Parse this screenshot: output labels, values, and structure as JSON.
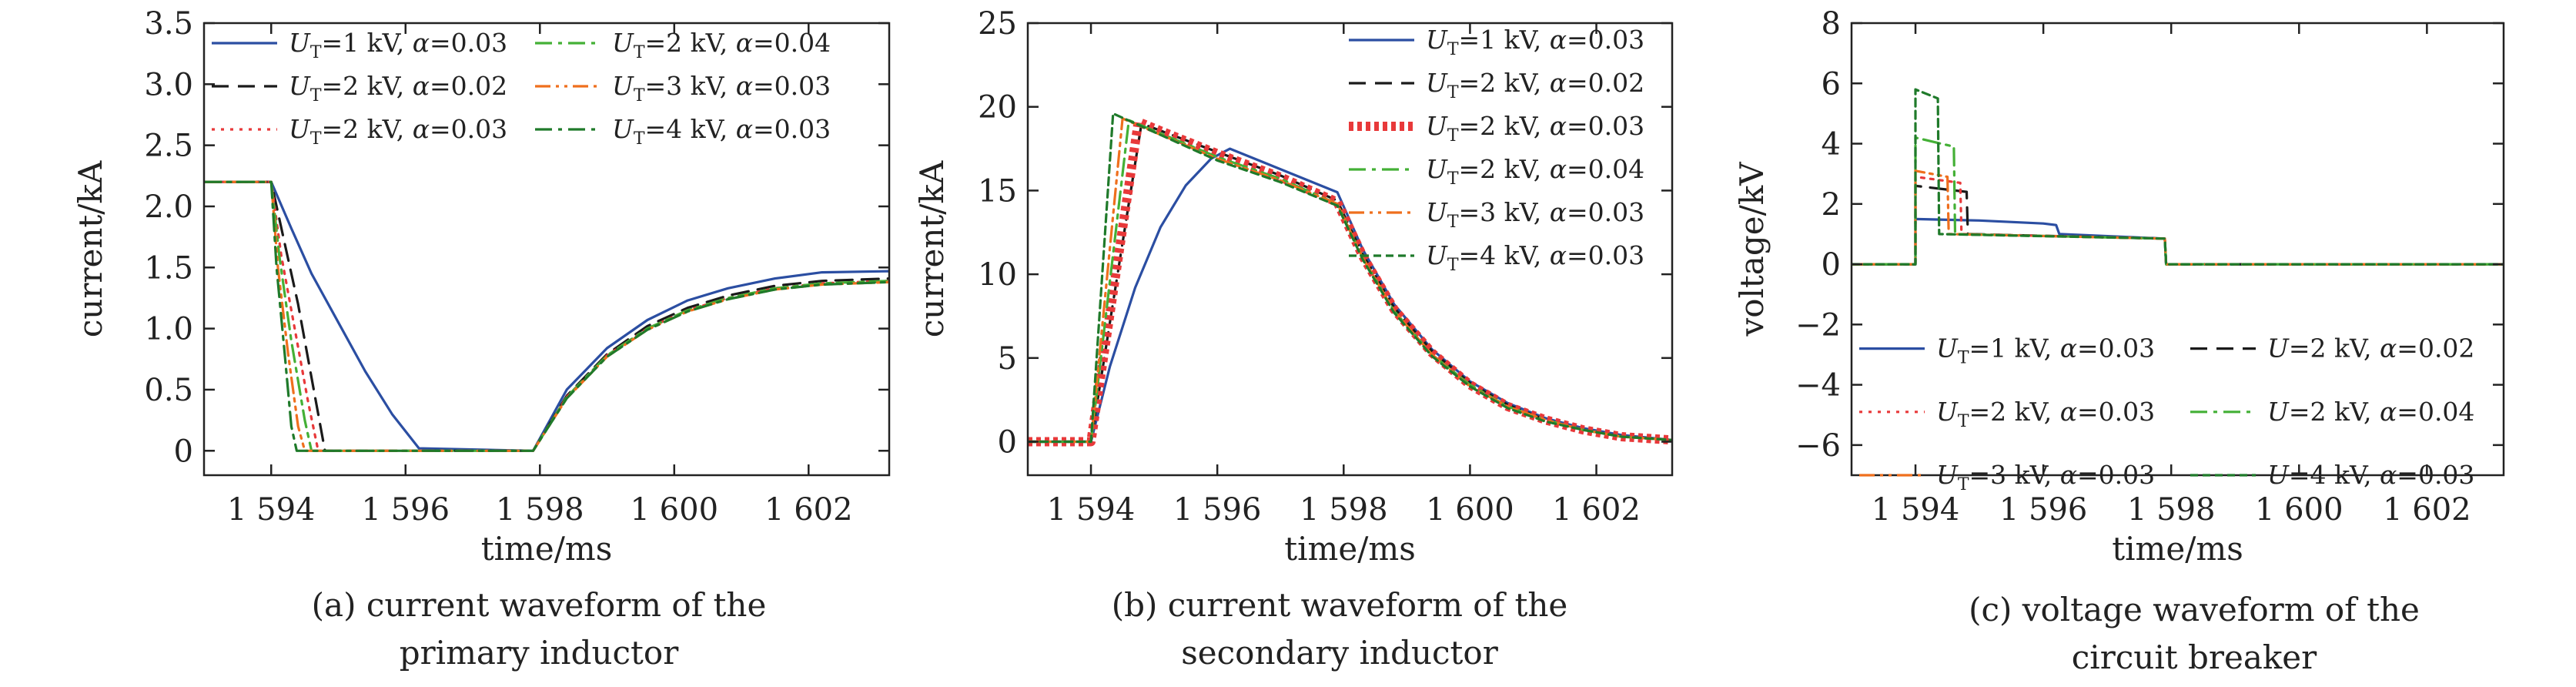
{
  "colors": {
    "blue": "#2b4ea2",
    "black": "#1a1a1a",
    "red": "#e8393a",
    "green_light": "#44b036",
    "orange": "#ef6f1d",
    "green_dark": "#1f7a2a",
    "axis": "#222222"
  },
  "chart_data": [
    {
      "type": "line",
      "title": "",
      "caption": [
        "(a) current waveform of the",
        "primary inductor"
      ],
      "xlabel": "time/ms",
      "ylabel": "current/kA",
      "xlim": [
        1593,
        1603.2
      ],
      "ylim": [
        -0.2,
        3.5
      ],
      "xticks": [
        1594,
        1596,
        1598,
        1600,
        1602
      ],
      "xtick_labels": [
        "1 594",
        "1 596",
        "1 598",
        "1 600",
        "1 602"
      ],
      "yticks": [
        0,
        0.5,
        1.0,
        1.5,
        2.0,
        2.5,
        3.0,
        3.5
      ],
      "ytick_labels": [
        "0",
        "0.5",
        "1.0",
        "1.5",
        "2.0",
        "2.5",
        "3.0",
        "3.5"
      ],
      "legend_position": "top",
      "legend_columns": 2,
      "legend_order": [
        0,
        3,
        1,
        4,
        2,
        5
      ],
      "series": [
        {
          "name": "U_T=1 kV, α=0.03",
          "color": "blue",
          "dash": "solid",
          "x": [
            1593,
            1594,
            1594.3,
            1594.6,
            1595.0,
            1595.4,
            1595.8,
            1596.2,
            1597.9,
            1598.4,
            1599,
            1599.6,
            1600.2,
            1600.8,
            1601.5,
            1602.2,
            1603.2
          ],
          "y": [
            2.2,
            2.2,
            1.82,
            1.45,
            1.05,
            0.65,
            0.3,
            0.02,
            0.0,
            0.5,
            0.84,
            1.07,
            1.23,
            1.33,
            1.41,
            1.46,
            1.47
          ]
        },
        {
          "name": "U_T=2 kV, α=0.02",
          "color": "black",
          "dash": "dash",
          "x": [
            1593,
            1594,
            1594.2,
            1594.4,
            1594.6,
            1594.8,
            1597.9,
            1598.4,
            1599,
            1599.6,
            1600.2,
            1600.8,
            1601.5,
            1602.2,
            1603.2
          ],
          "y": [
            2.2,
            2.2,
            1.7,
            1.2,
            0.6,
            0.0,
            0.0,
            0.45,
            0.79,
            1.02,
            1.17,
            1.27,
            1.35,
            1.39,
            1.41
          ]
        },
        {
          "name": "U_T=2 kV, α=0.03",
          "color": "red",
          "dash": "dot",
          "x": [
            1593,
            1594,
            1594.15,
            1594.35,
            1594.55,
            1594.7,
            1597.9,
            1598.4,
            1599,
            1599.6,
            1600.2,
            1600.8,
            1601.5,
            1602.2,
            1603.2
          ],
          "y": [
            2.2,
            2.2,
            1.6,
            1.0,
            0.4,
            0.0,
            0.0,
            0.44,
            0.78,
            1.0,
            1.15,
            1.25,
            1.33,
            1.37,
            1.39
          ]
        },
        {
          "name": "U_T=2 kV, α=0.04",
          "color": "green_light",
          "dash": "dashdot",
          "x": [
            1593,
            1594,
            1594.12,
            1594.3,
            1594.5,
            1594.6,
            1597.9,
            1598.4,
            1599,
            1599.6,
            1600.2,
            1600.8,
            1601.5,
            1602.2,
            1603.2
          ],
          "y": [
            2.2,
            2.2,
            1.6,
            0.9,
            0.25,
            0.0,
            0.0,
            0.44,
            0.78,
            1.0,
            1.15,
            1.25,
            1.33,
            1.37,
            1.39
          ]
        },
        {
          "name": "U_T=3 kV, α=0.03",
          "color": "orange",
          "dash": "dashdotdot",
          "x": [
            1593,
            1594,
            1594.1,
            1594.25,
            1594.4,
            1594.5,
            1597.9,
            1598.4,
            1599,
            1599.6,
            1600.2,
            1600.8,
            1601.5,
            1602.2,
            1603.2
          ],
          "y": [
            2.2,
            2.2,
            1.5,
            0.8,
            0.2,
            0.0,
            0.0,
            0.43,
            0.77,
            0.99,
            1.14,
            1.24,
            1.32,
            1.36,
            1.38
          ]
        },
        {
          "name": "U_T=4 kV, α=0.03",
          "color": "green_dark",
          "dash": "dashdot",
          "x": [
            1593,
            1594,
            1594.08,
            1594.2,
            1594.3,
            1594.38,
            1597.9,
            1598.4,
            1599,
            1599.6,
            1600.2,
            1600.8,
            1601.5,
            1602.2,
            1603.2
          ],
          "y": [
            2.2,
            2.2,
            1.5,
            0.8,
            0.2,
            0.0,
            0.0,
            0.43,
            0.77,
            0.99,
            1.14,
            1.24,
            1.32,
            1.36,
            1.38
          ]
        }
      ]
    },
    {
      "type": "line",
      "title": "",
      "caption": [
        "(b) current waveform of the",
        "secondary inductor"
      ],
      "xlabel": "time/ms",
      "ylabel": "current/kA",
      "xlim": [
        1593,
        1603.2
      ],
      "ylim": [
        -2,
        25
      ],
      "xticks": [
        1594,
        1596,
        1598,
        1600,
        1602
      ],
      "xtick_labels": [
        "1 594",
        "1 596",
        "1 598",
        "1 600",
        "1 602"
      ],
      "yticks": [
        0,
        5,
        10,
        15,
        20,
        25
      ],
      "ytick_labels": [
        "0",
        "5",
        "10",
        "15",
        "20",
        "25"
      ],
      "legend_position": "top-right",
      "legend_columns": 1,
      "legend_order": [
        0,
        1,
        2,
        3,
        4,
        5
      ],
      "series": [
        {
          "name": "U_T=1 kV, α=0.03",
          "color": "blue",
          "dash": "solid",
          "x": [
            1593,
            1594,
            1594.3,
            1594.7,
            1595.1,
            1595.5,
            1595.9,
            1596.2,
            1597.9,
            1598.3,
            1598.8,
            1599.4,
            1600,
            1600.6,
            1601.2,
            1601.8,
            1602.4,
            1603.2
          ],
          "y": [
            0,
            0,
            4.5,
            9.2,
            12.8,
            15.3,
            16.9,
            17.5,
            14.9,
            11.5,
            8.2,
            5.5,
            3.6,
            2.3,
            1.4,
            0.8,
            0.4,
            0.1
          ]
        },
        {
          "name": "U_T=2 kV, α=0.02",
          "color": "black",
          "dash": "dash",
          "x": [
            1593,
            1594,
            1594.8,
            1596,
            1597,
            1597.9,
            1598.3,
            1598.8,
            1599.4,
            1600,
            1600.6,
            1601.2,
            1601.8,
            1602.4,
            1603.2
          ],
          "y": [
            0,
            0,
            19.0,
            17.3,
            15.9,
            14.4,
            11.2,
            8.0,
            5.4,
            3.5,
            2.2,
            1.3,
            0.7,
            0.3,
            0.1
          ]
        },
        {
          "name": "U_T=2 kV, α=0.03",
          "color": "red",
          "dash": "thick-dot",
          "x": [
            1593,
            1594,
            1594.75,
            1596,
            1597,
            1597.9,
            1598.3,
            1598.8,
            1599.4,
            1600,
            1600.6,
            1601.2,
            1601.8,
            1602.4,
            1603.2
          ],
          "y": [
            0,
            0,
            19.1,
            17.2,
            15.8,
            14.3,
            11.1,
            7.9,
            5.3,
            3.4,
            2.1,
            1.3,
            0.7,
            0.3,
            0.1
          ]
        },
        {
          "name": "U_T=2 kV, α=0.04",
          "color": "green_light",
          "dash": "dashdot",
          "x": [
            1593,
            1594,
            1594.6,
            1596,
            1597,
            1597.9,
            1598.3,
            1598.8,
            1599.4,
            1600,
            1600.6,
            1601.2,
            1601.8,
            1602.4,
            1603.2
          ],
          "y": [
            0,
            0,
            19.2,
            17.0,
            15.7,
            14.2,
            11.0,
            7.8,
            5.2,
            3.4,
            2.1,
            1.3,
            0.7,
            0.3,
            0.1
          ]
        },
        {
          "name": "U_T=3 kV, α=0.03",
          "color": "orange",
          "dash": "dashdotdot",
          "x": [
            1593,
            1594,
            1594.5,
            1596,
            1597,
            1597.9,
            1598.3,
            1598.8,
            1599.4,
            1600,
            1600.6,
            1601.2,
            1601.8,
            1602.4,
            1603.2
          ],
          "y": [
            0,
            0,
            19.3,
            16.9,
            15.6,
            14.2,
            11.0,
            7.8,
            5.2,
            3.3,
            2.1,
            1.3,
            0.7,
            0.3,
            0.1
          ]
        },
        {
          "name": "U_T=4 kV, α=0.03",
          "color": "green_dark",
          "dash": "shortdash",
          "x": [
            1593,
            1594,
            1594.35,
            1596,
            1597,
            1597.9,
            1598.3,
            1598.8,
            1599.4,
            1600,
            1600.6,
            1601.2,
            1601.8,
            1602.4,
            1603.2
          ],
          "y": [
            0,
            0,
            19.6,
            16.8,
            15.5,
            14.1,
            10.9,
            7.7,
            5.1,
            3.3,
            2.0,
            1.2,
            0.7,
            0.3,
            0.1
          ]
        }
      ]
    },
    {
      "type": "line",
      "title": "",
      "caption": [
        "(c) voltage waveform of the",
        "circuit breaker"
      ],
      "xlabel": "time/ms",
      "ylabel": "voltage/kV",
      "xlim": [
        1593,
        1603.2
      ],
      "ylim": [
        -7,
        8
      ],
      "xticks": [
        1594,
        1596,
        1598,
        1600,
        1602
      ],
      "xtick_labels": [
        "1 594",
        "1 596",
        "1 598",
        "1 600",
        "1 602"
      ],
      "yticks": [
        -6,
        -4,
        -2,
        0,
        2,
        4,
        6,
        8
      ],
      "ytick_labels": [
        "−6",
        "−4",
        "−2",
        "0",
        "2",
        "4",
        "6",
        "8"
      ],
      "legend_position": "bottom",
      "legend_columns": 2,
      "legend_order": [
        0,
        1,
        2,
        3,
        4,
        5
      ],
      "series": [
        {
          "name": "U_T=1 kV, α=0.03",
          "color": "blue",
          "dash": "solid",
          "x": [
            1593,
            1594,
            1594,
            1595,
            1596,
            1596.2,
            1596.25,
            1597.9,
            1597.92,
            1603.2
          ],
          "y": [
            0,
            0,
            1.5,
            1.45,
            1.35,
            1.3,
            1.0,
            0.85,
            0,
            0
          ]
        },
        {
          "name": "U=2 kV, α=0.02",
          "color": "black",
          "dash": "dash",
          "x": [
            1593,
            1594,
            1594,
            1594.8,
            1594.82,
            1597.9,
            1597.92,
            1603.2
          ],
          "y": [
            0,
            0,
            2.6,
            2.4,
            1.0,
            0.85,
            0,
            0
          ]
        },
        {
          "name": "U_T=2 kV, α=0.03",
          "color": "red",
          "dash": "dot",
          "x": [
            1593,
            1594,
            1594,
            1594.7,
            1594.72,
            1597.9,
            1597.92,
            1603.2
          ],
          "y": [
            0,
            0,
            2.9,
            2.7,
            1.0,
            0.85,
            0,
            0
          ]
        },
        {
          "name": "U=2 kV, α=0.04",
          "color": "green_light",
          "dash": "dashdot",
          "x": [
            1593,
            1594,
            1594,
            1594.6,
            1594.62,
            1597.9,
            1597.92,
            1603.2
          ],
          "y": [
            0,
            0,
            4.2,
            3.9,
            1.0,
            0.85,
            0,
            0
          ]
        },
        {
          "name": "U_T=3 kV, α=0.03",
          "color": "orange",
          "dash": "dashdotdot",
          "x": [
            1593,
            1594,
            1594,
            1594.5,
            1594.52,
            1597.9,
            1597.92,
            1603.2
          ],
          "y": [
            0,
            0,
            3.1,
            2.9,
            1.0,
            0.85,
            0,
            0
          ]
        },
        {
          "name": "U=4 kV, α=0.03",
          "color": "green_dark",
          "dash": "shortdash",
          "x": [
            1593,
            1594,
            1594,
            1594.35,
            1594.37,
            1597.9,
            1597.92,
            1603.2
          ],
          "y": [
            0,
            0,
            5.8,
            5.5,
            1.0,
            0.85,
            0,
            0
          ]
        }
      ]
    }
  ]
}
